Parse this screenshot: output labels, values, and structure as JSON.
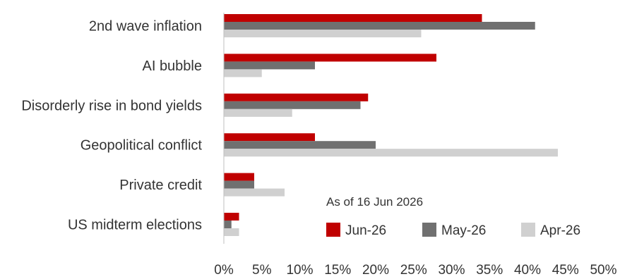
{
  "chart_data": {
    "type": "bar",
    "orientation": "horizontal",
    "categories": [
      "2nd wave inflation",
      "AI bubble",
      "Disorderly rise in bond yields",
      "Geopolitical conflict",
      "Private credit",
      "US midterm elections"
    ],
    "series": [
      {
        "name": "Jun-26",
        "color": "#c00000",
        "values": [
          34,
          28,
          19,
          12,
          4,
          2
        ]
      },
      {
        "name": "May-26",
        "color": "#707070",
        "values": [
          41,
          12,
          18,
          20,
          4,
          1
        ]
      },
      {
        "name": "Apr-26",
        "color": "#d0d0d0",
        "values": [
          26,
          5,
          9,
          44,
          8,
          2
        ]
      }
    ],
    "xlim": [
      0,
      50
    ],
    "x_ticks": [
      0,
      5,
      10,
      15,
      20,
      25,
      30,
      35,
      40,
      45,
      50
    ],
    "x_tick_labels": [
      "0%",
      "5%",
      "10%",
      "15%",
      "20%",
      "25%",
      "30%",
      "35%",
      "40%",
      "45%",
      "50%"
    ],
    "annotation": "As of 16 Jun 2026",
    "legend_position": "bottom-right",
    "grid": false
  }
}
